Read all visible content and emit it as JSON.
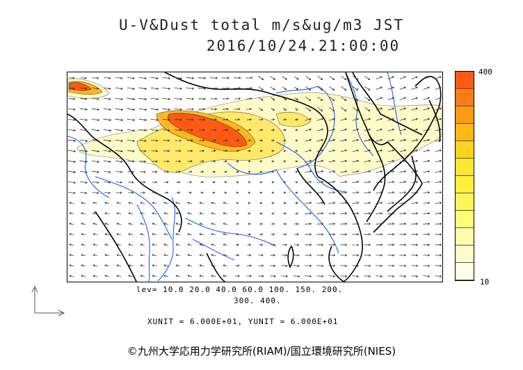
{
  "title": {
    "line1": "U-V&Dust total m/s&ug/m3 JST",
    "line2": "2016/10/24.21:00:00"
  },
  "colorbar": {
    "max_label": "400",
    "min_label": "10",
    "colors": [
      "#ff5a14",
      "#ff7a14",
      "#ff9a14",
      "#ffb814",
      "#ffd21e",
      "#ffe632",
      "#fff03c",
      "#fff55a",
      "#fffa78",
      "#fffcaa",
      "#fffdcc",
      "#fffee6"
    ]
  },
  "levels": {
    "line1": "lev= 10.0 20.0 40.0 60.0 100. 150. 200.",
    "line2": "300. 400."
  },
  "units": "XUNIT = 6.000E+01, YUNIT = 6.000E+01",
  "copyright": "©九州大学応用力学研究所(RIAM)/国立環境研究所(NIES)",
  "colors": {
    "coast": "#000000",
    "rivers": "#1a5cff",
    "contour": "#333333",
    "dust_low": "#fffbc8",
    "dust_mid": "#ffe86a",
    "dust_high": "#ffb81e",
    "dust_peak": "#ff5a14"
  }
}
